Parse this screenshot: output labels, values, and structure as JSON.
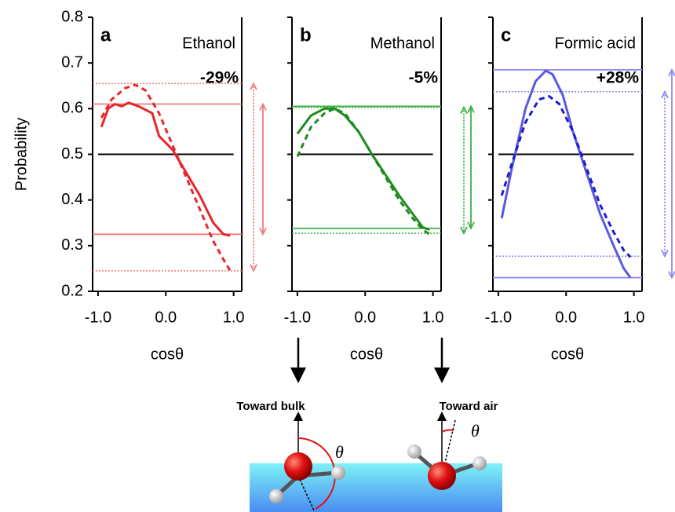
{
  "chart_data": [
    {
      "type": "line",
      "panel_label": "a",
      "title": "Ethanol",
      "annotation": "-29%",
      "ylabel": "Probability",
      "xlabel": "cosθ",
      "xlim": [
        -1.08,
        1.12
      ],
      "ylim": [
        0.2,
        0.8
      ],
      "xticks": [
        {
          "value": -1,
          "label": "-1.0"
        },
        {
          "value": 0,
          "label": "0.0"
        },
        {
          "value": 1,
          "label": "1.0"
        }
      ],
      "yticks": [
        0.2,
        0.3,
        0.4,
        0.5,
        0.6,
        0.7,
        0.8
      ],
      "reference": {
        "y": 0.5,
        "x_from": -1,
        "x_to": 1
      },
      "ref_color": "#f07a7a",
      "hlines": {
        "solid": [
          0.61,
          0.325
        ],
        "dotted": [
          0.655,
          0.245
        ]
      },
      "series": [
        {
          "color": "#e8262a",
          "dash": false,
          "x": [
            -0.95,
            -0.85,
            -0.75,
            -0.65,
            -0.55,
            -0.4,
            -0.2,
            -0.1,
            0.1,
            0.3,
            0.5,
            0.7,
            0.85,
            0.95
          ],
          "values": [
            0.56,
            0.6,
            0.61,
            0.605,
            0.613,
            0.605,
            0.59,
            0.54,
            0.51,
            0.46,
            0.41,
            0.35,
            0.325,
            0.322
          ]
        },
        {
          "color": "#e8262a",
          "dash": true,
          "x": [
            -0.95,
            -0.8,
            -0.6,
            -0.45,
            -0.3,
            -0.1,
            0.1,
            0.3,
            0.5,
            0.7,
            0.85,
            0.95
          ],
          "values": [
            0.58,
            0.62,
            0.645,
            0.652,
            0.64,
            0.59,
            0.52,
            0.45,
            0.38,
            0.31,
            0.27,
            0.245
          ]
        }
      ]
    },
    {
      "type": "line",
      "panel_label": "b",
      "title": "Methanol",
      "annotation": "-5%",
      "xlabel": "cosθ",
      "xlim": [
        -1.08,
        1.12
      ],
      "ylim": [
        0.2,
        0.8
      ],
      "xticks": [
        {
          "value": -1,
          "label": "-1.0"
        },
        {
          "value": 0,
          "label": "0.0"
        },
        {
          "value": 1,
          "label": "1.0"
        }
      ],
      "yticks": [
        0.2,
        0.3,
        0.4,
        0.5,
        0.6,
        0.7,
        0.8
      ],
      "reference": {
        "y": 0.5,
        "x_from": -1,
        "x_to": 1
      },
      "ref_color": "#3cb043",
      "hlines": {
        "solid": [
          0.605,
          0.338
        ],
        "dotted": [
          0.603,
          0.327
        ]
      },
      "series": [
        {
          "color": "#1e8c1e",
          "dash": false,
          "x": [
            -1,
            -0.8,
            -0.6,
            -0.45,
            -0.3,
            -0.1,
            0.1,
            0.3,
            0.5,
            0.7,
            0.85,
            0.95
          ],
          "values": [
            0.545,
            0.585,
            0.6,
            0.6,
            0.585,
            0.55,
            0.5,
            0.455,
            0.41,
            0.37,
            0.34,
            0.335
          ]
        },
        {
          "color": "#1e8c1e",
          "dash": true,
          "x": [
            -1,
            -0.8,
            -0.6,
            -0.45,
            -0.3,
            -0.1,
            0.1,
            0.3,
            0.5,
            0.7,
            0.85,
            0.95
          ],
          "values": [
            0.495,
            0.56,
            0.59,
            0.6,
            0.59,
            0.55,
            0.5,
            0.45,
            0.4,
            0.36,
            0.335,
            0.325
          ]
        }
      ]
    },
    {
      "type": "line",
      "panel_label": "c",
      "title": "Formic acid",
      "annotation": "+28%",
      "xlabel": "cosθ",
      "xlim": [
        -1.08,
        1.12
      ],
      "ylim": [
        0.2,
        0.8
      ],
      "xticks": [
        {
          "value": -1,
          "label": "-1.0"
        },
        {
          "value": 0,
          "label": "0.0"
        },
        {
          "value": 1,
          "label": "1.0"
        }
      ],
      "yticks": [
        0.2,
        0.3,
        0.4,
        0.5,
        0.6,
        0.7,
        0.8
      ],
      "reference": {
        "y": 0.5,
        "x_from": -1,
        "x_to": 1
      },
      "ref_color": "#8a8af0",
      "hlines": {
        "solid": [
          0.685,
          0.23
        ],
        "dotted": [
          0.637,
          0.277
        ]
      },
      "series": [
        {
          "color": "#5a5ae0",
          "dash": false,
          "x": [
            -0.95,
            -0.8,
            -0.6,
            -0.45,
            -0.3,
            -0.2,
            -0.05,
            0.1,
            0.3,
            0.5,
            0.7,
            0.85,
            0.95
          ],
          "values": [
            0.36,
            0.47,
            0.6,
            0.66,
            0.683,
            0.675,
            0.63,
            0.55,
            0.46,
            0.37,
            0.3,
            0.25,
            0.23
          ]
        },
        {
          "color": "#1c1ccc",
          "dash": true,
          "x": [
            -0.95,
            -0.8,
            -0.6,
            -0.4,
            -0.25,
            -0.1,
            0.1,
            0.3,
            0.5,
            0.7,
            0.85,
            0.95
          ],
          "values": [
            0.41,
            0.48,
            0.57,
            0.62,
            0.627,
            0.61,
            0.55,
            0.47,
            0.39,
            0.33,
            0.29,
            0.275
          ]
        }
      ]
    }
  ],
  "diagram": {
    "labels": [
      "Toward bulk",
      "Toward air"
    ],
    "angle_symbol": "θ"
  }
}
